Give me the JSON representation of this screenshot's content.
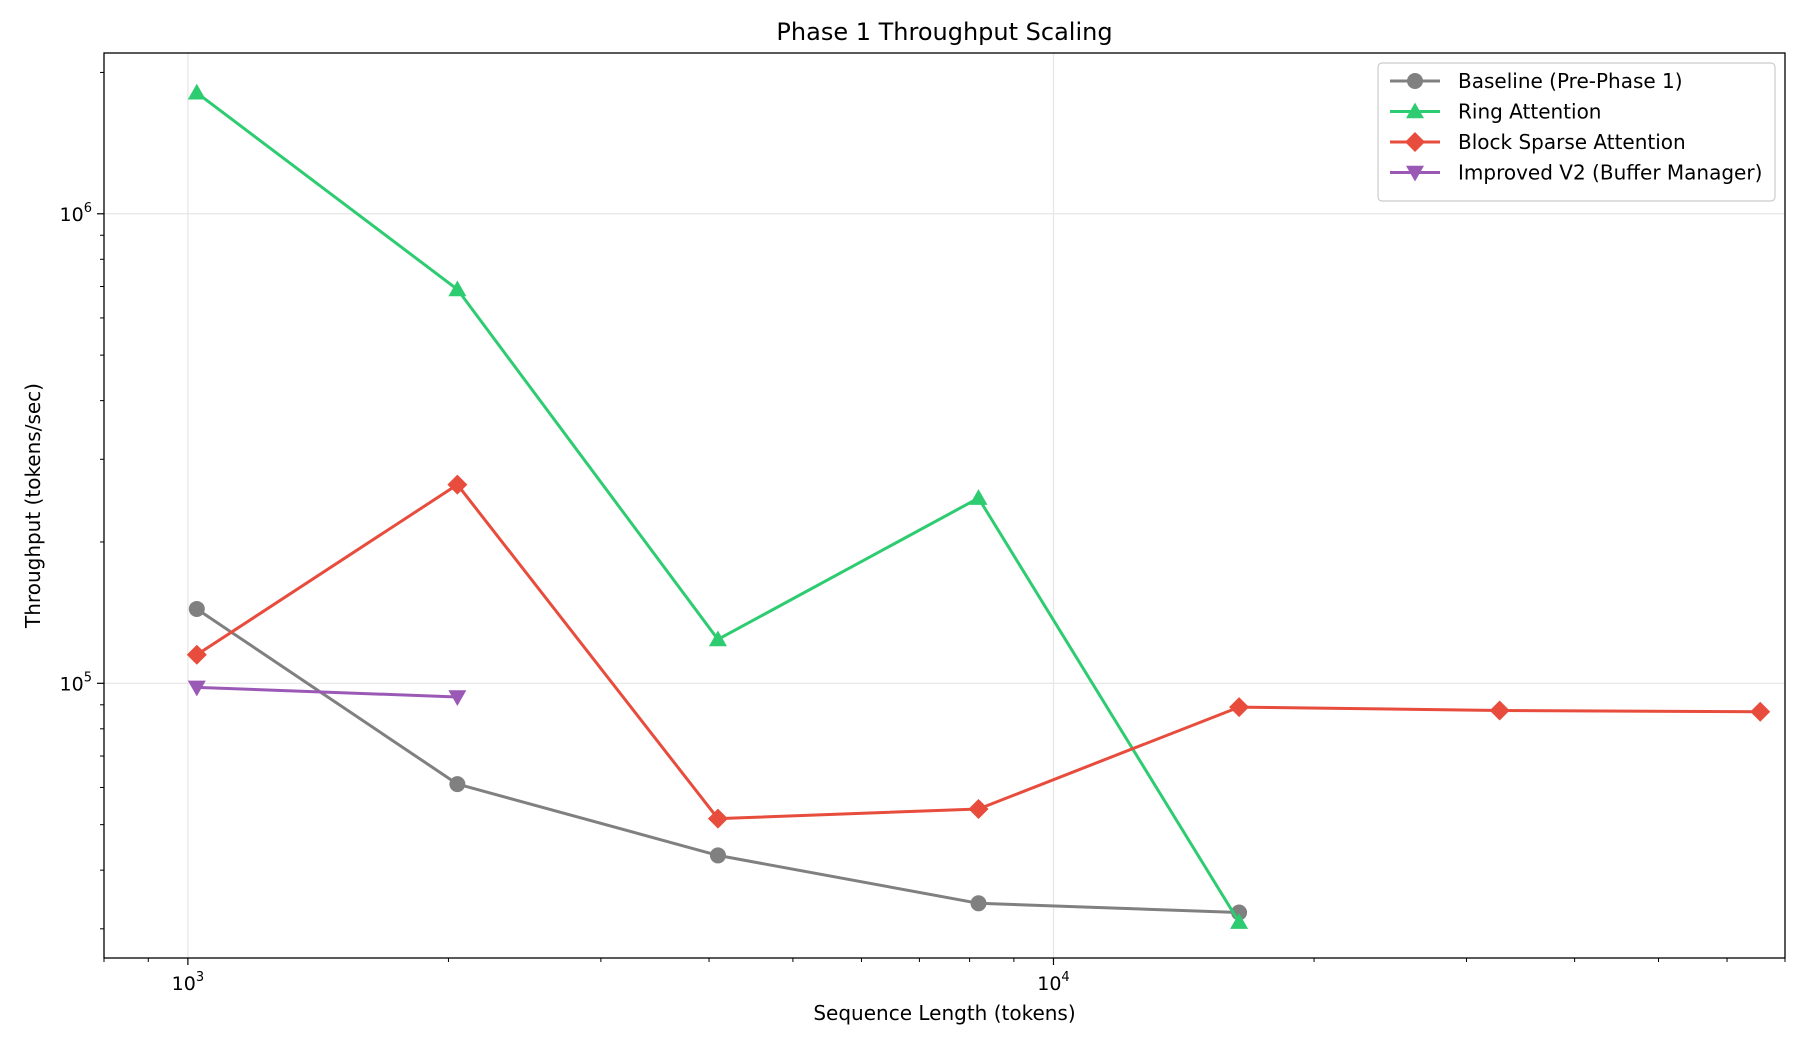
{
  "chart_data": {
    "type": "line",
    "title": "Phase 1 Throughput Scaling",
    "xlabel": "Sequence Length (tokens)",
    "ylabel": "Throughput (tokens/sec)",
    "xscale": "log",
    "yscale": "log",
    "xlim": [
      800,
      70000
    ],
    "ylim": [
      26000,
      2200000
    ],
    "x_ticks": [
      {
        "base": "10",
        "exp": "3",
        "value": 1000
      },
      {
        "base": "10",
        "exp": "4",
        "value": 10000
      }
    ],
    "y_ticks": [
      {
        "base": "10",
        "exp": "5",
        "value": 100000
      },
      {
        "base": "10",
        "exp": "6",
        "value": 1000000
      }
    ],
    "grid": true,
    "legend_position": "top-right",
    "series": [
      {
        "name": "Baseline (Pre-Phase 1)",
        "color": "#808080",
        "marker": "circle",
        "x": [
          1024,
          2048,
          4096,
          8192,
          16384
        ],
        "y": [
          144000,
          61000,
          43000,
          34000,
          32500
        ]
      },
      {
        "name": "Ring Attention",
        "color": "#2ecc71",
        "marker": "triangle-up",
        "x": [
          1024,
          2048,
          4096,
          8192,
          16384
        ],
        "y": [
          1810000,
          690000,
          124000,
          248000,
          31000
        ]
      },
      {
        "name": "Block Sparse Attention",
        "color": "#e74c3c",
        "marker": "diamond",
        "x": [
          1024,
          2048,
          4096,
          8192,
          16384,
          32768,
          65536
        ],
        "y": [
          115000,
          265000,
          51500,
          54000,
          89000,
          87500,
          87000
        ]
      },
      {
        "name": "Improved V2 (Buffer Manager)",
        "color": "#9b59b6",
        "marker": "triangle-down",
        "x": [
          1024,
          2048
        ],
        "y": [
          98000,
          93500
        ]
      }
    ]
  }
}
